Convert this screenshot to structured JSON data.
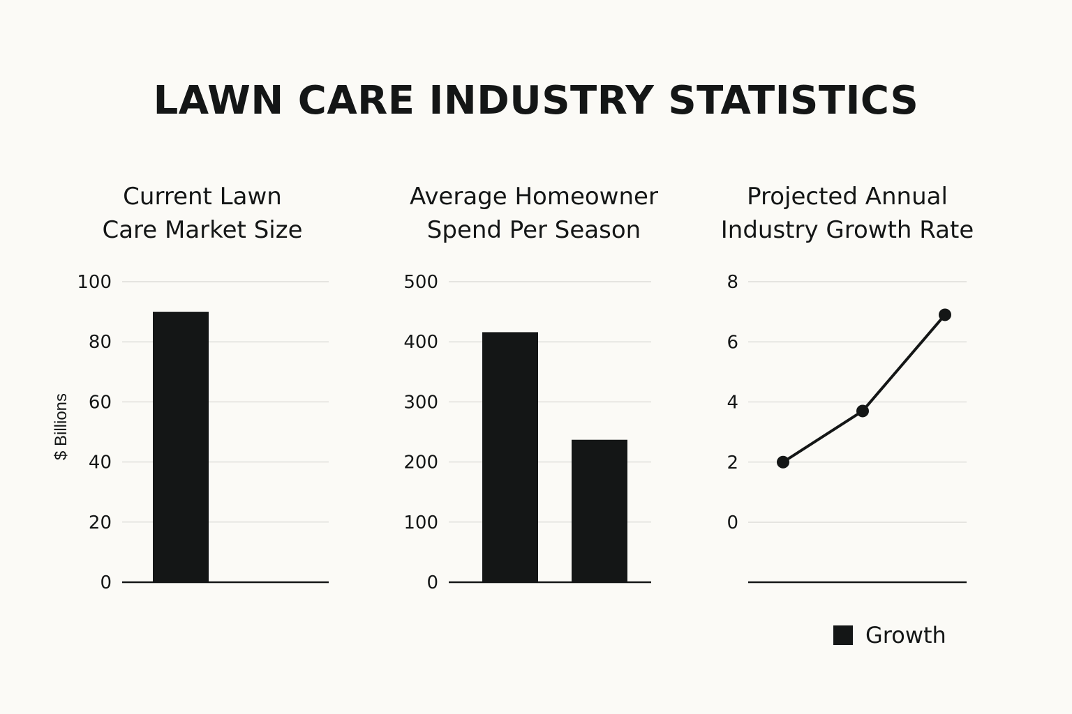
{
  "title": "LAWN CARE INDUSTRY STATISTICS",
  "chart_data": [
    {
      "type": "bar",
      "title_lines": [
        "Current Lawn",
        "Care Market Size"
      ],
      "ylabel": "$ Billions",
      "ylim": [
        0,
        100
      ],
      "yticks": [
        0,
        20,
        40,
        60,
        80,
        100
      ],
      "categories": [
        "",
        ""
      ],
      "values": [
        90,
        0
      ],
      "grid": true
    },
    {
      "type": "bar",
      "title_lines": [
        "Average Homeowner",
        "Spend Per Season"
      ],
      "ylabel": "",
      "ylim": [
        0,
        500
      ],
      "yticks": [
        0,
        100,
        200,
        300,
        400,
        500
      ],
      "categories": [
        "",
        ""
      ],
      "values": [
        416,
        237
      ],
      "grid": true
    },
    {
      "type": "line",
      "title_lines": [
        "Projected Annual",
        "Industry Growth Rate"
      ],
      "ylabel": "",
      "ylim": [
        0,
        8
      ],
      "yticks": [
        0,
        2,
        4,
        6,
        8
      ],
      "x": [
        1,
        2,
        3
      ],
      "series": [
        {
          "name": "Growth",
          "values": [
            2.0,
            3.7,
            6.9
          ]
        }
      ],
      "legend": {
        "label": "Growth",
        "position": "bottom-right"
      },
      "grid": true
    }
  ],
  "colors": {
    "ink": "#141616",
    "grid": "#cfcfcb",
    "background": "#fbfaf6"
  }
}
